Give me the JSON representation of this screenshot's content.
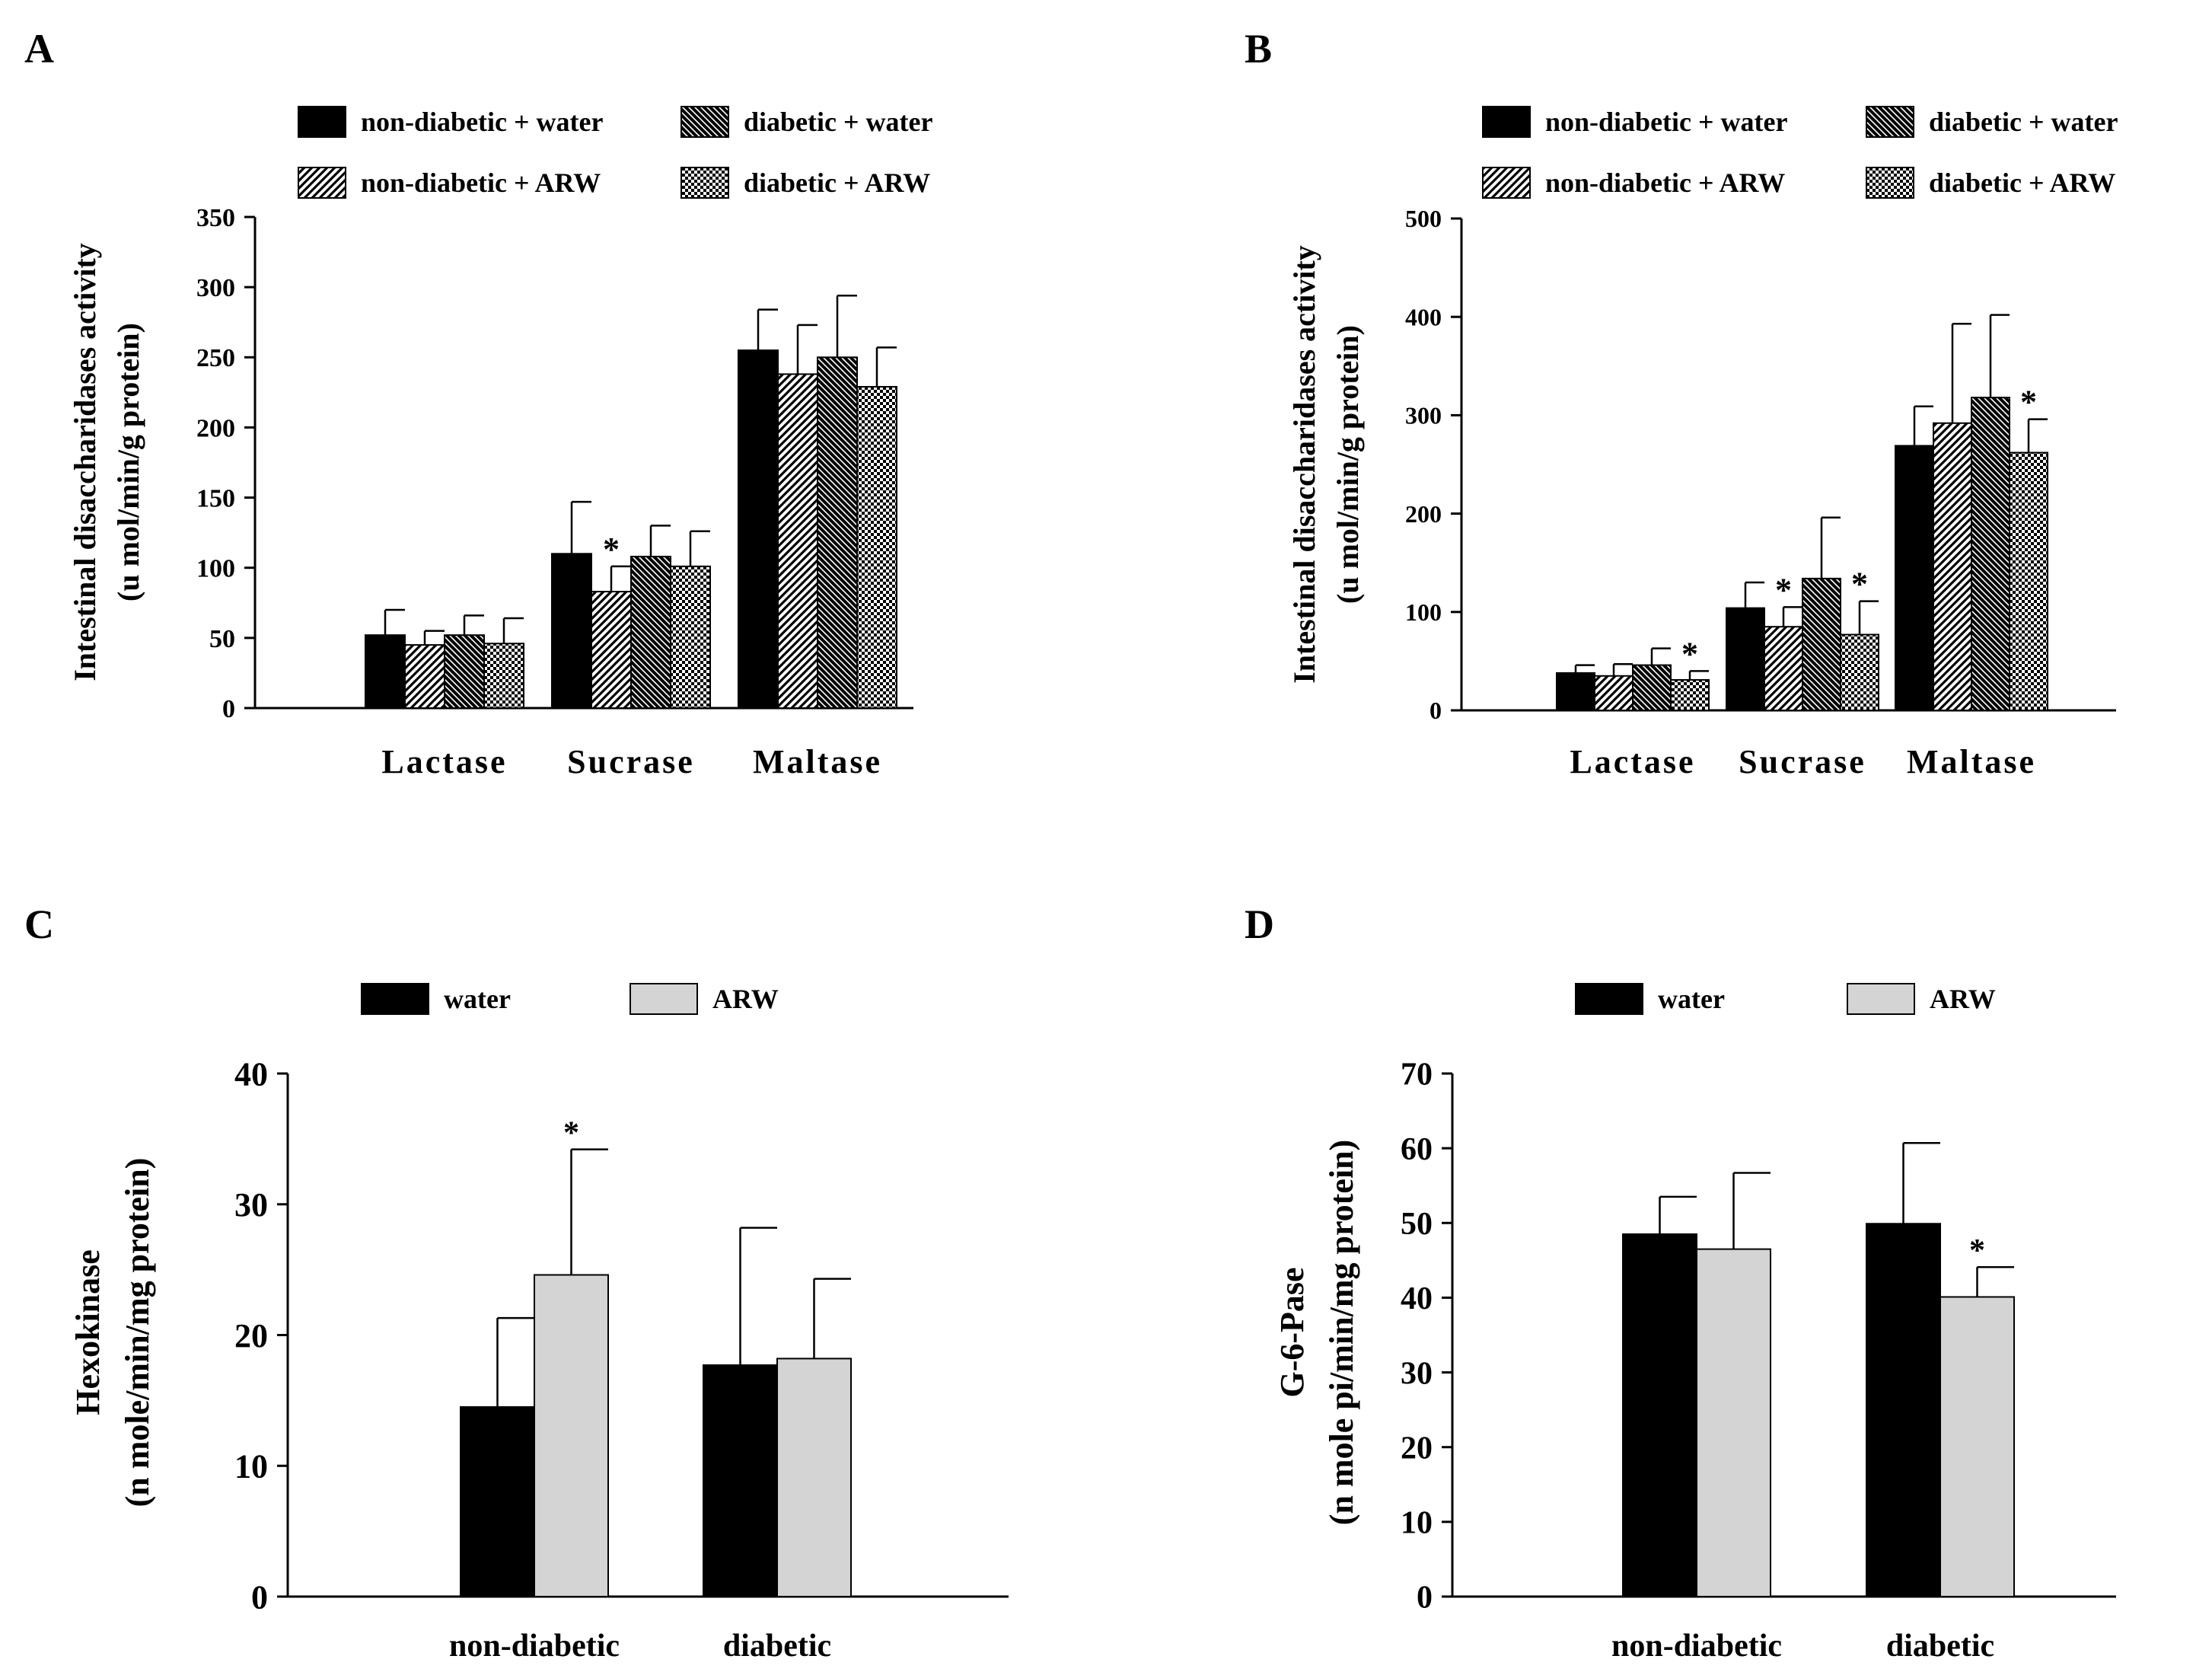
{
  "chart_data": [
    {
      "panel": "A",
      "type": "bar",
      "ylabel_line1": "Intestinal disaccharidases activity",
      "ylabel_line2": "(u mol/min/g protein)",
      "ylim": [
        0,
        350
      ],
      "yticks": [
        "0",
        "50",
        "100",
        "150",
        "200",
        "250",
        "300",
        "350"
      ],
      "categories": [
        "Lactase",
        "Sucrase",
        "Maltase"
      ],
      "series": [
        {
          "name": "non-diabetic  + water",
          "pattern": "solid",
          "values": [
            52,
            110,
            255
          ],
          "errors": [
            18,
            37,
            29
          ],
          "stars": [
            false,
            false,
            false
          ]
        },
        {
          "name": "non-diabetic  + ARW",
          "pattern": "diagR",
          "values": [
            45,
            83,
            238
          ],
          "errors": [
            10,
            18,
            35
          ],
          "stars": [
            false,
            true,
            false
          ]
        },
        {
          "name": "diabetic  + water",
          "pattern": "diagL",
          "values": [
            52,
            108,
            250
          ],
          "errors": [
            14,
            22,
            44
          ],
          "stars": [
            false,
            false,
            false
          ]
        },
        {
          "name": "diabetic  + ARW",
          "pattern": "checker",
          "values": [
            46,
            101,
            229
          ],
          "errors": [
            18,
            25,
            28
          ],
          "stars": [
            false,
            false,
            false
          ]
        }
      ],
      "star_symbol": "*"
    },
    {
      "panel": "B",
      "type": "bar",
      "ylabel_line1": "Intestinal disaccharidases activity",
      "ylabel_line2": "(u mol/min/g protein)",
      "ylim": [
        0,
        500
      ],
      "yticks": [
        "0",
        "100",
        "200",
        "300",
        "400",
        "500"
      ],
      "categories": [
        "Lactase",
        "Sucrase",
        "Maltase"
      ],
      "series": [
        {
          "name": "non-diabetic  + water",
          "pattern": "solid",
          "values": [
            38,
            104,
            269
          ],
          "errors": [
            8,
            26,
            40
          ],
          "stars": [
            false,
            false,
            false
          ]
        },
        {
          "name": "non-diabetic  + ARW",
          "pattern": "diagR",
          "values": [
            35,
            85,
            292
          ],
          "errors": [
            12,
            20,
            101
          ],
          "stars": [
            false,
            true,
            false
          ]
        },
        {
          "name": "diabetic  + water",
          "pattern": "diagL",
          "values": [
            46,
            134,
            318
          ],
          "errors": [
            17,
            62,
            84
          ],
          "stars": [
            false,
            false,
            false
          ]
        },
        {
          "name": "diabetic  + ARW",
          "pattern": "checker",
          "values": [
            31,
            77,
            262
          ],
          "errors": [
            9,
            34,
            34
          ],
          "stars": [
            true,
            true,
            true
          ]
        }
      ],
      "star_symbol": "*"
    },
    {
      "panel": "C",
      "type": "bar",
      "ylabel_line1": "Hexokinase",
      "ylabel_line2": "(n mole/min/mg protein)",
      "ylim": [
        0,
        40
      ],
      "yticks": [
        "0",
        "10",
        "20",
        "30",
        "40"
      ],
      "categories": [
        "non-diabetic",
        "diabetic"
      ],
      "series": [
        {
          "name": "water",
          "pattern": "solid",
          "values": [
            14.5,
            17.7
          ],
          "errors": [
            6.8,
            10.5
          ],
          "stars": [
            false,
            false
          ]
        },
        {
          "name": "ARW",
          "pattern": "gray",
          "values": [
            24.6,
            18.2
          ],
          "errors": [
            9.6,
            6.1
          ],
          "stars": [
            true,
            false
          ]
        }
      ],
      "star_symbol": "*"
    },
    {
      "panel": "D",
      "type": "bar",
      "ylabel_line1": "G-6-Pase",
      "ylabel_line2": "(n mole pi/min/mg protein)",
      "ylim": [
        0,
        70
      ],
      "yticks": [
        "0",
        "10",
        "20",
        "30",
        "40",
        "50",
        "60",
        "70"
      ],
      "categories": [
        "non-diabetic",
        "diabetic"
      ],
      "series": [
        {
          "name": "water",
          "pattern": "solid",
          "values": [
            48.5,
            49.9
          ],
          "errors": [
            5.0,
            10.8
          ],
          "stars": [
            false,
            false
          ]
        },
        {
          "name": "ARW",
          "pattern": "gray",
          "values": [
            46.5,
            40.1
          ],
          "errors": [
            10.2,
            4.0
          ],
          "stars": [
            false,
            true
          ]
        }
      ],
      "star_symbol": "*"
    }
  ],
  "colors": {
    "solid": "#000000",
    "gray": "#d4d4d4",
    "axis": "#000000"
  }
}
